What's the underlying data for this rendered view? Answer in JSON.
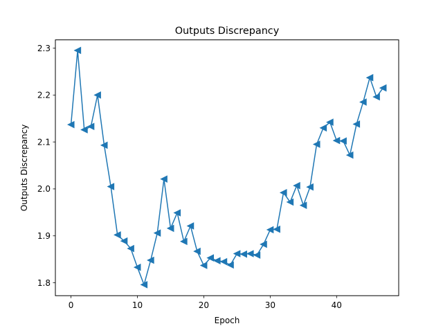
{
  "chart_data": {
    "type": "line",
    "title": "Outputs Discrepancy",
    "xlabel": "Epoch",
    "ylabel": "Outputs Discrepancy",
    "xlim": [
      -2.35,
      49.35
    ],
    "ylim": [
      1.7725,
      2.3175
    ],
    "x_ticks": [
      0,
      10,
      20,
      30,
      40
    ],
    "y_ticks": [
      1.8,
      1.9,
      2.0,
      2.1,
      2.2,
      2.3
    ],
    "grid": false,
    "legend": "none",
    "marker": "left-pointing triangle",
    "color": "#1f77b4",
    "x": [
      0,
      1,
      2,
      3,
      4,
      5,
      6,
      7,
      8,
      9,
      10,
      11,
      12,
      13,
      14,
      15,
      16,
      17,
      18,
      19,
      20,
      21,
      22,
      23,
      24,
      25,
      26,
      27,
      28,
      29,
      30,
      31,
      32,
      33,
      34,
      35,
      36,
      37,
      38,
      39,
      40,
      41,
      42,
      43,
      44,
      45,
      46,
      47
    ],
    "series": [
      {
        "values": [
          2.137,
          2.295,
          2.126,
          2.133,
          2.2,
          2.093,
          2.005,
          1.902,
          1.889,
          1.873,
          1.833,
          1.796,
          1.848,
          1.906,
          2.021,
          1.916,
          1.949,
          1.888,
          1.921,
          1.867,
          1.837,
          1.853,
          1.847,
          1.845,
          1.838,
          1.862,
          1.861,
          1.862,
          1.859,
          1.882,
          1.913,
          1.914,
          1.992,
          1.972,
          2.007,
          1.965,
          2.004,
          2.095,
          2.13,
          2.142,
          2.103,
          2.102,
          2.072,
          2.138,
          2.185,
          2.237,
          2.196,
          2.215
        ]
      }
    ]
  }
}
